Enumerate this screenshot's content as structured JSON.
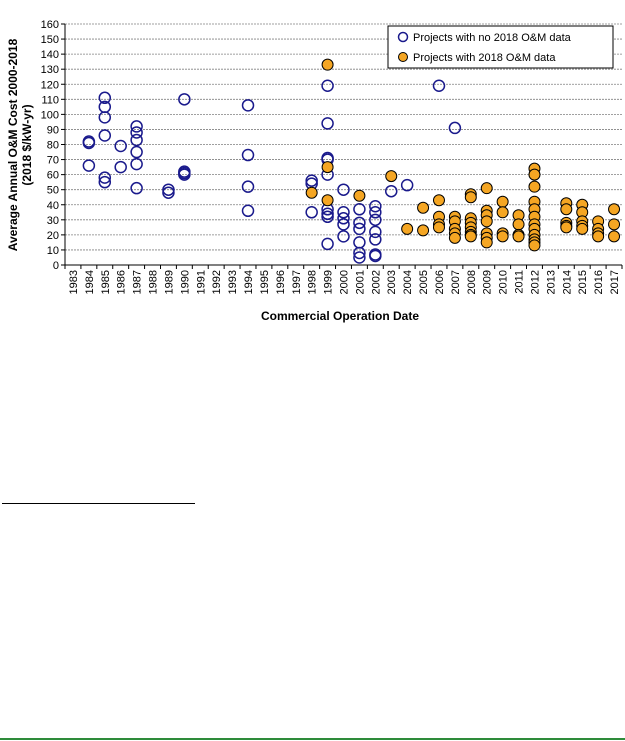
{
  "chart_data": {
    "type": "scatter",
    "xlabel": "Commercial Operation Date",
    "ylabel_line1": "Average Annual O&M Cost 2000-2018",
    "ylabel_line2": "(2018 $/kW-yr)",
    "xlim": [
      1983,
      2017
    ],
    "ylim": [
      0,
      160
    ],
    "y_ticks": [
      "0",
      "10",
      "20",
      "30",
      "40",
      "50",
      "60",
      "70",
      "80",
      "90",
      "100",
      "110",
      "120",
      "130",
      "140",
      "150",
      "160"
    ],
    "x_ticks": [
      "1983",
      "1984",
      "1985",
      "1986",
      "1987",
      "1988",
      "1989",
      "1990",
      "1991",
      "1992",
      "1993",
      "1994",
      "1995",
      "1996",
      "1997",
      "1998",
      "1999",
      "2000",
      "2001",
      "2002",
      "2003",
      "2004",
      "2005",
      "2006",
      "2007",
      "2008",
      "2009",
      "2010",
      "2011",
      "2012",
      "2013",
      "2014",
      "2015",
      "2016",
      "2017"
    ],
    "grid": "horizontal",
    "legend_position": "top-right",
    "series": [
      {
        "name": "Projects with no 2018 O&M data",
        "color": "#1a1a8c",
        "fill": "none",
        "points": [
          [
            1984,
            82
          ],
          [
            1984,
            81
          ],
          [
            1984,
            66
          ],
          [
            1985,
            111
          ],
          [
            1985,
            105
          ],
          [
            1985,
            98
          ],
          [
            1985,
            86
          ],
          [
            1985,
            58
          ],
          [
            1985,
            55
          ],
          [
            1986,
            79
          ],
          [
            1986,
            65
          ],
          [
            1987,
            92
          ],
          [
            1987,
            88
          ],
          [
            1987,
            83
          ],
          [
            1987,
            75
          ],
          [
            1987,
            67
          ],
          [
            1987,
            51
          ],
          [
            1989,
            50
          ],
          [
            1989,
            48
          ],
          [
            1990,
            110
          ],
          [
            1990,
            62
          ],
          [
            1990,
            61
          ],
          [
            1990,
            60
          ],
          [
            1994,
            106
          ],
          [
            1994,
            73
          ],
          [
            1994,
            52
          ],
          [
            1994,
            36
          ],
          [
            1998,
            56
          ],
          [
            1998,
            54
          ],
          [
            1998,
            35
          ],
          [
            1999,
            119
          ],
          [
            1999,
            94
          ],
          [
            1999,
            71
          ],
          [
            1999,
            70
          ],
          [
            1999,
            60
          ],
          [
            1999,
            37
          ],
          [
            1999,
            34
          ],
          [
            1999,
            32
          ],
          [
            1999,
            14
          ],
          [
            2000,
            50
          ],
          [
            2000,
            35
          ],
          [
            2000,
            31
          ],
          [
            2000,
            27
          ],
          [
            2000,
            19
          ],
          [
            2001,
            37
          ],
          [
            2001,
            28
          ],
          [
            2001,
            24
          ],
          [
            2001,
            15
          ],
          [
            2001,
            8
          ],
          [
            2001,
            5
          ],
          [
            2002,
            39
          ],
          [
            2002,
            35
          ],
          [
            2002,
            30
          ],
          [
            2002,
            22
          ],
          [
            2002,
            17
          ],
          [
            2002,
            7
          ],
          [
            2002,
            6
          ],
          [
            2003,
            49
          ],
          [
            2004,
            53
          ],
          [
            2006,
            119
          ],
          [
            2007,
            91
          ]
        ]
      },
      {
        "name": "Projects with 2018 O&M data",
        "color": "#000000",
        "fill": "#f5a623",
        "points": [
          [
            1998,
            48
          ],
          [
            1999,
            133
          ],
          [
            1999,
            65
          ],
          [
            1999,
            43
          ],
          [
            2001,
            46
          ],
          [
            2003,
            59
          ],
          [
            2004,
            24
          ],
          [
            2005,
            23
          ],
          [
            2005,
            38
          ],
          [
            2006,
            43
          ],
          [
            2006,
            32
          ],
          [
            2006,
            27
          ],
          [
            2006,
            25
          ],
          [
            2007,
            32
          ],
          [
            2007,
            29
          ],
          [
            2007,
            24
          ],
          [
            2007,
            21
          ],
          [
            2007,
            18
          ],
          [
            2008,
            47
          ],
          [
            2008,
            45
          ],
          [
            2008,
            31
          ],
          [
            2008,
            28
          ],
          [
            2008,
            25
          ],
          [
            2008,
            22
          ],
          [
            2008,
            20
          ],
          [
            2008,
            19
          ],
          [
            2009,
            51
          ],
          [
            2009,
            36
          ],
          [
            2009,
            33
          ],
          [
            2009,
            29
          ],
          [
            2009,
            21
          ],
          [
            2009,
            18
          ],
          [
            2009,
            15
          ],
          [
            2010,
            42
          ],
          [
            2010,
            35
          ],
          [
            2010,
            21
          ],
          [
            2010,
            19
          ],
          [
            2011,
            33
          ],
          [
            2011,
            27
          ],
          [
            2011,
            20
          ],
          [
            2011,
            19
          ],
          [
            2012,
            64
          ],
          [
            2012,
            60
          ],
          [
            2012,
            52
          ],
          [
            2012,
            42
          ],
          [
            2012,
            37
          ],
          [
            2012,
            32
          ],
          [
            2012,
            27
          ],
          [
            2012,
            24
          ],
          [
            2012,
            20
          ],
          [
            2012,
            17
          ],
          [
            2012,
            15
          ],
          [
            2012,
            13
          ],
          [
            2014,
            41
          ],
          [
            2014,
            37
          ],
          [
            2014,
            28
          ],
          [
            2014,
            26
          ],
          [
            2014,
            25
          ],
          [
            2015,
            40
          ],
          [
            2015,
            35
          ],
          [
            2015,
            29
          ],
          [
            2015,
            26
          ],
          [
            2015,
            24
          ],
          [
            2016,
            29
          ],
          [
            2016,
            24
          ],
          [
            2016,
            21
          ],
          [
            2016,
            19
          ],
          [
            2017,
            37
          ],
          [
            2017,
            27
          ],
          [
            2017,
            19
          ]
        ]
      }
    ]
  }
}
